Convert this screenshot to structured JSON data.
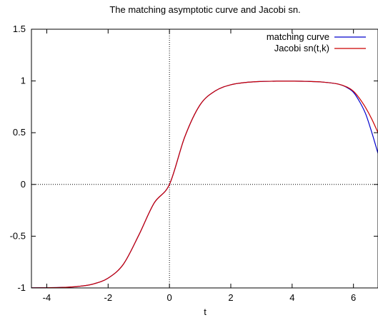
{
  "chart_data": {
    "type": "line",
    "title": "The matching asymptotic curve and Jacobi sn.",
    "xlabel": "t",
    "ylabel": "",
    "xlim": [
      -4.5,
      6.8
    ],
    "ylim": [
      -1,
      1.5
    ],
    "x_ticks": [
      -4,
      -2,
      0,
      2,
      4,
      6
    ],
    "y_ticks": [
      -1,
      -0.5,
      0,
      0.5,
      1,
      1.5
    ],
    "x_tick_labels": [
      "-4",
      "-2",
      "0",
      "2",
      "4",
      "6"
    ],
    "y_tick_labels": [
      "-1",
      "-0.5",
      "0",
      "0.5",
      "1",
      "1.5"
    ],
    "zero_axes": "dotted",
    "legend_position": "top-right",
    "series": [
      {
        "name": "matching curve",
        "color": "#0000cc",
        "x": [
          -4.5,
          -4,
          -3.5,
          -3,
          -2.5,
          -2,
          -1.5,
          -1,
          -0.5,
          0,
          0.5,
          1,
          1.5,
          2,
          2.5,
          3,
          3.5,
          4,
          4.5,
          5,
          5.5,
          5.8,
          6,
          6.2,
          6.4,
          6.6,
          6.8
        ],
        "values": [
          -0.999,
          -0.998,
          -0.995,
          -0.986,
          -0.963,
          -0.905,
          -0.77,
          -0.49,
          -0.18,
          0,
          0.46,
          0.77,
          0.905,
          0.963,
          0.986,
          0.995,
          0.998,
          0.998,
          0.996,
          0.989,
          0.97,
          0.935,
          0.89,
          0.8,
          0.68,
          0.5,
          0.3
        ]
      },
      {
        "name": "Jacobi sn(t,k)",
        "color": "#cc0000",
        "x": [
          -4.5,
          -4,
          -3.5,
          -3,
          -2.5,
          -2,
          -1.5,
          -1,
          -0.5,
          0,
          0.5,
          1,
          1.5,
          2,
          2.5,
          3,
          3.5,
          4,
          4.5,
          5,
          5.5,
          5.8,
          6,
          6.2,
          6.4,
          6.6,
          6.8
        ],
        "values": [
          -0.999,
          -0.998,
          -0.995,
          -0.986,
          -0.963,
          -0.905,
          -0.77,
          -0.49,
          -0.18,
          0,
          0.46,
          0.77,
          0.905,
          0.963,
          0.986,
          0.995,
          0.998,
          0.998,
          0.996,
          0.989,
          0.97,
          0.94,
          0.9,
          0.83,
          0.74,
          0.63,
          0.5
        ]
      }
    ]
  }
}
